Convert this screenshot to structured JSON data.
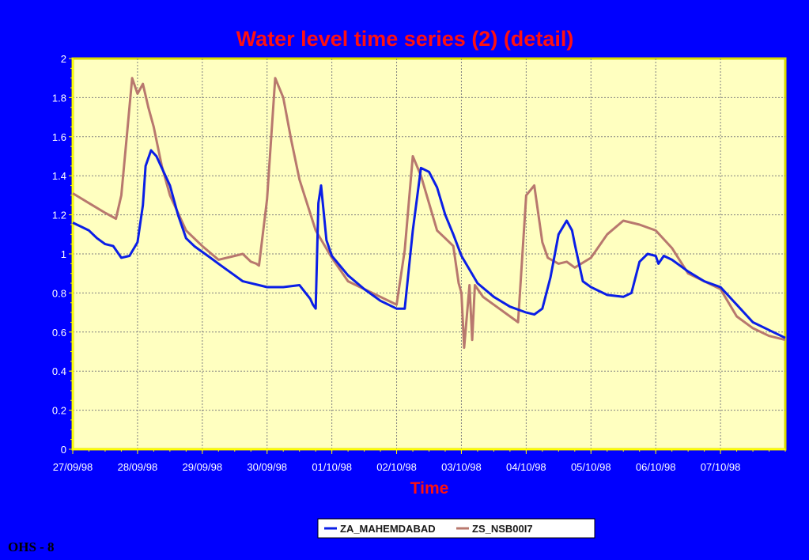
{
  "slide": {
    "label": "OHS - 8"
  },
  "colors": {
    "background": "#0000ff",
    "plot_area": "#ffffc0",
    "plot_border": "#d9d900",
    "grid": "#808080",
    "axis": "#ffff00",
    "title": "#ff1010"
  },
  "chart_data": {
    "type": "line",
    "title": "Water level time series (2) (detail)",
    "xlabel": "Time",
    "ylabel": "",
    "x_tick_labels": [
      "27/09/98",
      "28/09/98",
      "29/09/98",
      "30/09/98",
      "01/10/98",
      "02/10/98",
      "03/10/98",
      "04/10/98",
      "05/10/98",
      "06/10/98",
      "07/10/98"
    ],
    "xlim": [
      "27/09/98 00:00",
      "08/10/98 00:00"
    ],
    "ylim": [
      0,
      2
    ],
    "y_ticks": [
      "0",
      "0.2",
      "0.4",
      "0.6",
      "0.8",
      "1",
      "1.2",
      "1.4",
      "1.6",
      "1.8",
      "2"
    ],
    "grid": true,
    "legend_position": "bottom",
    "series": [
      {
        "name": "ZA_MAHEMDABAD",
        "color": "#0a1ee6",
        "x": [
          "27/09/98 00:00",
          "27/09/98 03:00",
          "27/09/98 06:00",
          "27/09/98 09:00",
          "27/09/98 12:00",
          "27/09/98 15:00",
          "27/09/98 18:00",
          "27/09/98 21:00",
          "28/09/98 00:00",
          "28/09/98 02:00",
          "28/09/98 03:00",
          "28/09/98 05:00",
          "28/09/98 07:00",
          "28/09/98 09:00",
          "28/09/98 12:00",
          "28/09/98 15:00",
          "28/09/98 18:00",
          "28/09/98 21:00",
          "29/09/98 00:00",
          "29/09/98 03:00",
          "29/09/98 06:00",
          "29/09/98 09:00",
          "29/09/98 12:00",
          "29/09/98 15:00",
          "29/09/98 18:00",
          "29/09/98 21:00",
          "30/09/98 00:00",
          "30/09/98 06:00",
          "30/09/98 12:00",
          "30/09/98 16:00",
          "30/09/98 17:00",
          "30/09/98 18:00",
          "30/09/98 19:00",
          "30/09/98 20:00",
          "30/09/98 22:00",
          "01/10/98 00:00",
          "01/10/98 06:00",
          "01/10/98 12:00",
          "01/10/98 18:00",
          "02/10/98 00:00",
          "02/10/98 03:00",
          "02/10/98 06:00",
          "02/10/98 09:00",
          "02/10/98 12:00",
          "02/10/98 15:00",
          "02/10/98 18:00",
          "02/10/98 21:00",
          "03/10/98 00:00",
          "03/10/98 06:00",
          "03/10/98 12:00",
          "03/10/98 18:00",
          "04/10/98 00:00",
          "04/10/98 03:00",
          "04/10/98 06:00",
          "04/10/98 09:00",
          "04/10/98 12:00",
          "04/10/98 15:00",
          "04/10/98 17:00",
          "04/10/98 18:00",
          "04/10/98 21:00",
          "05/10/98 00:00",
          "05/10/98 06:00",
          "05/10/98 12:00",
          "05/10/98 15:00",
          "05/10/98 18:00",
          "05/10/98 21:00",
          "06/10/98 00:00",
          "06/10/98 01:00",
          "06/10/98 03:00",
          "06/10/98 06:00",
          "06/10/98 12:00",
          "06/10/98 18:00",
          "07/10/98 00:00",
          "07/10/98 06:00",
          "07/10/98 12:00",
          "07/10/98 18:00",
          "08/10/98 00:00"
        ],
        "y": [
          1.16,
          1.14,
          1.12,
          1.08,
          1.05,
          1.04,
          0.98,
          0.99,
          1.06,
          1.25,
          1.45,
          1.53,
          1.5,
          1.44,
          1.35,
          1.2,
          1.08,
          1.04,
          1.01,
          0.98,
          0.95,
          0.92,
          0.89,
          0.86,
          0.85,
          0.84,
          0.83,
          0.83,
          0.84,
          0.77,
          0.74,
          0.72,
          1.26,
          1.35,
          1.07,
          0.99,
          0.89,
          0.82,
          0.76,
          0.72,
          0.72,
          1.12,
          1.44,
          1.42,
          1.34,
          1.2,
          1.1,
          0.99,
          0.85,
          0.78,
          0.73,
          0.7,
          0.69,
          0.72,
          0.88,
          1.1,
          1.17,
          1.12,
          1.05,
          0.86,
          0.83,
          0.79,
          0.78,
          0.8,
          0.96,
          1.0,
          0.99,
          0.95,
          0.99,
          0.97,
          0.91,
          0.86,
          0.83,
          0.74,
          0.65,
          0.61,
          0.57
        ]
      },
      {
        "name": "ZS_NSB00I7",
        "color": "#b8786e",
        "x": [
          "27/09/98 00:00",
          "27/09/98 06:00",
          "27/09/98 12:00",
          "27/09/98 16:00",
          "27/09/98 18:00",
          "27/09/98 20:00",
          "27/09/98 22:00",
          "28/09/98 00:00",
          "28/09/98 02:00",
          "28/09/98 04:00",
          "28/09/98 06:00",
          "28/09/98 09:00",
          "28/09/98 12:00",
          "28/09/98 18:00",
          "29/09/98 00:00",
          "29/09/98 06:00",
          "29/09/98 12:00",
          "29/09/98 15:00",
          "29/09/98 18:00",
          "29/09/98 20:00",
          "29/09/98 21:00",
          "30/09/98 00:00",
          "30/09/98 03:00",
          "30/09/98 06:00",
          "30/09/98 09:00",
          "30/09/98 12:00",
          "30/09/98 18:00",
          "01/10/98 00:00",
          "01/10/98 06:00",
          "01/10/98 12:00",
          "01/10/98 18:00",
          "02/10/98 00:00",
          "02/10/98 03:00",
          "02/10/98 06:00",
          "02/10/98 09:00",
          "02/10/98 12:00",
          "02/10/98 15:00",
          "02/10/98 18:00",
          "02/10/98 21:00",
          "02/10/98 23:00",
          "03/10/98 00:00",
          "03/10/98 01:00",
          "03/10/98 03:00",
          "03/10/98 04:00",
          "03/10/98 05:00",
          "03/10/98 08:00",
          "03/10/98 12:00",
          "03/10/98 18:00",
          "03/10/98 21:00",
          "04/10/98 00:00",
          "04/10/98 03:00",
          "04/10/98 06:00",
          "04/10/98 08:00",
          "04/10/98 12:00",
          "04/10/98 15:00",
          "04/10/98 18:00",
          "05/10/98 00:00",
          "05/10/98 06:00",
          "05/10/98 12:00",
          "05/10/98 18:00",
          "06/10/98 00:00",
          "06/10/98 06:00",
          "06/10/98 12:00",
          "06/10/98 18:00",
          "07/10/98 00:00",
          "07/10/98 06:00",
          "07/10/98 12:00",
          "07/10/98 18:00",
          "08/10/98 00:00"
        ],
        "y": [
          1.31,
          1.26,
          1.21,
          1.18,
          1.3,
          1.6,
          1.9,
          1.82,
          1.87,
          1.75,
          1.65,
          1.45,
          1.3,
          1.12,
          1.04,
          0.97,
          0.99,
          1.0,
          0.96,
          0.95,
          0.94,
          1.28,
          1.9,
          1.8,
          1.58,
          1.38,
          1.12,
          0.98,
          0.86,
          0.82,
          0.78,
          0.74,
          1.02,
          1.5,
          1.4,
          1.26,
          1.12,
          1.08,
          1.04,
          0.85,
          0.8,
          0.52,
          0.84,
          0.56,
          0.84,
          0.78,
          0.74,
          0.68,
          0.65,
          1.3,
          1.35,
          1.06,
          0.98,
          0.95,
          0.96,
          0.93,
          0.98,
          1.1,
          1.17,
          1.15,
          1.12,
          1.03,
          0.9,
          0.86,
          0.82,
          0.68,
          0.62,
          0.58,
          0.56
        ]
      }
    ]
  }
}
